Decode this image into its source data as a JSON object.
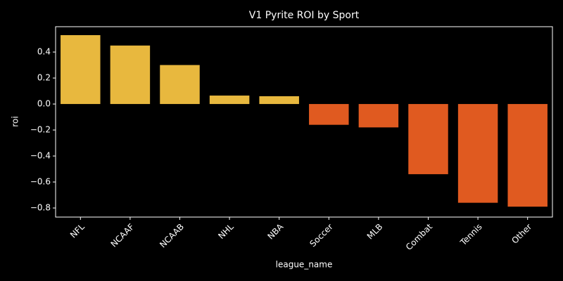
{
  "chart_data": {
    "type": "bar",
    "title": "V1 Pyrite ROI by Sport",
    "x_label": "league_name",
    "y_label": "roi",
    "categories": [
      "NFL",
      "NCAAF",
      "NCAAB",
      "NHL",
      "NBA",
      "Soccer",
      "MLB",
      "Combat",
      "Tennis",
      "Other"
    ],
    "values": [
      0.53,
      0.45,
      0.3,
      0.065,
      0.06,
      -0.16,
      -0.18,
      -0.54,
      -0.76,
      -0.79
    ],
    "colors": [
      "#e8b83e",
      "#e8b83e",
      "#e8b83e",
      "#e8b83e",
      "#e8b83e",
      "#e05a20",
      "#e05a20",
      "#e05a20",
      "#e05a20",
      "#e05a20"
    ],
    "ylim": [
      -0.87,
      0.595
    ],
    "yticks": [
      {
        "value": -0.8,
        "label": "−0.8"
      },
      {
        "value": -0.6,
        "label": "−0.6"
      },
      {
        "value": -0.4,
        "label": "−0.4"
      },
      {
        "value": -0.2,
        "label": "−0.2"
      },
      {
        "value": 0,
        "label": "0.0"
      },
      {
        "value": 0.2,
        "label": "0.2"
      },
      {
        "value": 0.4,
        "label": "0.4"
      }
    ],
    "grid": false
  }
}
